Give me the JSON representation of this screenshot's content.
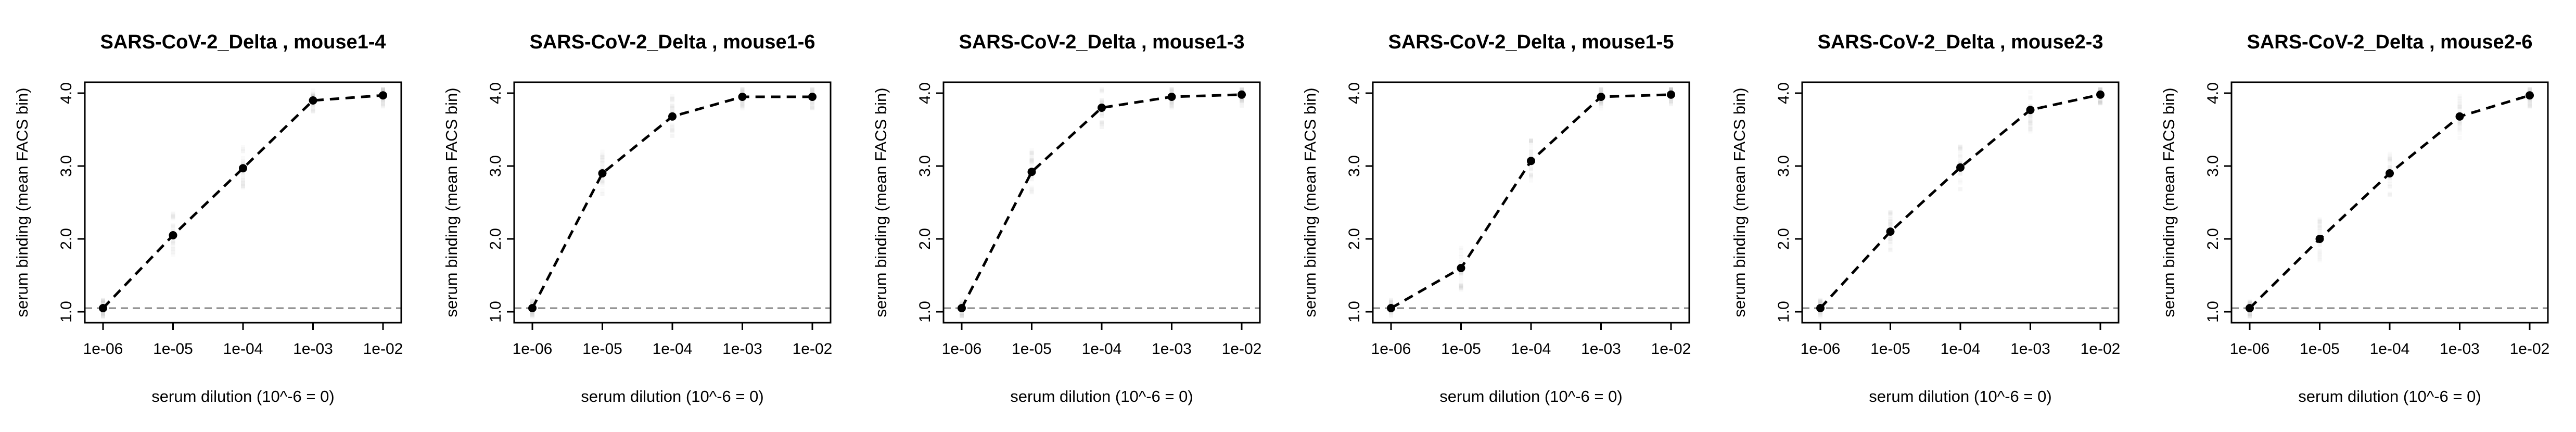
{
  "chart_data": [
    {
      "type": "line",
      "title": "SARS-CoV-2_Delta , mouse1-4",
      "xlabel": "serum dilution (10^-6 = 0)",
      "ylabel": "serum binding (mean FACS bin)",
      "x_ticks": [
        "1e-06",
        "1e-05",
        "1e-04",
        "1e-03",
        "1e-02"
      ],
      "y_ticks": [
        "1.0",
        "2.0",
        "3.0",
        "4.0"
      ],
      "x_scale": "log",
      "ylim": [
        0.85,
        4.15
      ],
      "baseline": 1.05,
      "x": [
        1e-06,
        1e-05,
        0.0001,
        0.001,
        0.01
      ],
      "y": [
        1.05,
        2.05,
        2.97,
        3.9,
        3.97
      ]
    },
    {
      "type": "line",
      "title": "SARS-CoV-2_Delta , mouse1-6",
      "xlabel": "serum dilution (10^-6 = 0)",
      "ylabel": "serum binding (mean FACS bin)",
      "x_ticks": [
        "1e-06",
        "1e-05",
        "1e-04",
        "1e-03",
        "1e-02"
      ],
      "y_ticks": [
        "1.0",
        "2.0",
        "3.0",
        "4.0"
      ],
      "x_scale": "log",
      "ylim": [
        0.85,
        4.15
      ],
      "baseline": 1.05,
      "x": [
        1e-06,
        1e-05,
        0.0001,
        0.001,
        0.01
      ],
      "y": [
        1.05,
        2.9,
        3.68,
        3.95,
        3.95
      ]
    },
    {
      "type": "line",
      "title": "SARS-CoV-2_Delta , mouse1-3",
      "xlabel": "serum dilution (10^-6 = 0)",
      "ylabel": "serum binding (mean FACS bin)",
      "x_ticks": [
        "1e-06",
        "1e-05",
        "1e-04",
        "1e-03",
        "1e-02"
      ],
      "y_ticks": [
        "1.0",
        "2.0",
        "3.0",
        "4.0"
      ],
      "x_scale": "log",
      "ylim": [
        0.85,
        4.15
      ],
      "baseline": 1.05,
      "x": [
        1e-06,
        1e-05,
        0.0001,
        0.001,
        0.01
      ],
      "y": [
        1.05,
        2.92,
        3.8,
        3.95,
        3.98
      ]
    },
    {
      "type": "line",
      "title": "SARS-CoV-2_Delta , mouse1-5",
      "xlabel": "serum dilution (10^-6 = 0)",
      "ylabel": "serum binding (mean FACS bin)",
      "x_ticks": [
        "1e-06",
        "1e-05",
        "1e-04",
        "1e-03",
        "1e-02"
      ],
      "y_ticks": [
        "1.0",
        "2.0",
        "3.0",
        "4.0"
      ],
      "x_scale": "log",
      "ylim": [
        0.85,
        4.15
      ],
      "baseline": 1.05,
      "x": [
        1e-06,
        1e-05,
        0.0001,
        0.001,
        0.01
      ],
      "y": [
        1.05,
        1.6,
        3.07,
        3.95,
        3.98
      ]
    },
    {
      "type": "line",
      "title": "SARS-CoV-2_Delta , mouse2-3",
      "xlabel": "serum dilution (10^-6 = 0)",
      "ylabel": "serum binding (mean FACS bin)",
      "x_ticks": [
        "1e-06",
        "1e-05",
        "1e-04",
        "1e-03",
        "1e-02"
      ],
      "y_ticks": [
        "1.0",
        "2.0",
        "3.0",
        "4.0"
      ],
      "x_scale": "log",
      "ylim": [
        0.85,
        4.15
      ],
      "baseline": 1.05,
      "x": [
        1e-06,
        1e-05,
        0.0001,
        0.001,
        0.01
      ],
      "y": [
        1.05,
        2.1,
        2.98,
        3.77,
        3.98
      ]
    },
    {
      "type": "line",
      "title": "SARS-CoV-2_Delta , mouse2-6",
      "xlabel": "serum dilution (10^-6 = 0)",
      "ylabel": "serum binding (mean FACS bin)",
      "x_ticks": [
        "1e-06",
        "1e-05",
        "1e-04",
        "1e-03",
        "1e-02"
      ],
      "y_ticks": [
        "1.0",
        "2.0",
        "3.0",
        "4.0"
      ],
      "x_scale": "log",
      "ylim": [
        0.85,
        4.15
      ],
      "baseline": 1.05,
      "x": [
        1e-06,
        1e-05,
        0.0001,
        0.001,
        0.01
      ],
      "y": [
        1.05,
        2.0,
        2.9,
        3.68,
        3.97
      ]
    }
  ],
  "colors": {
    "line": "#000000",
    "points": "#000000",
    "baseline": "#888888",
    "scatter_cloud": "#9a9a9a",
    "frame": "#000000"
  }
}
